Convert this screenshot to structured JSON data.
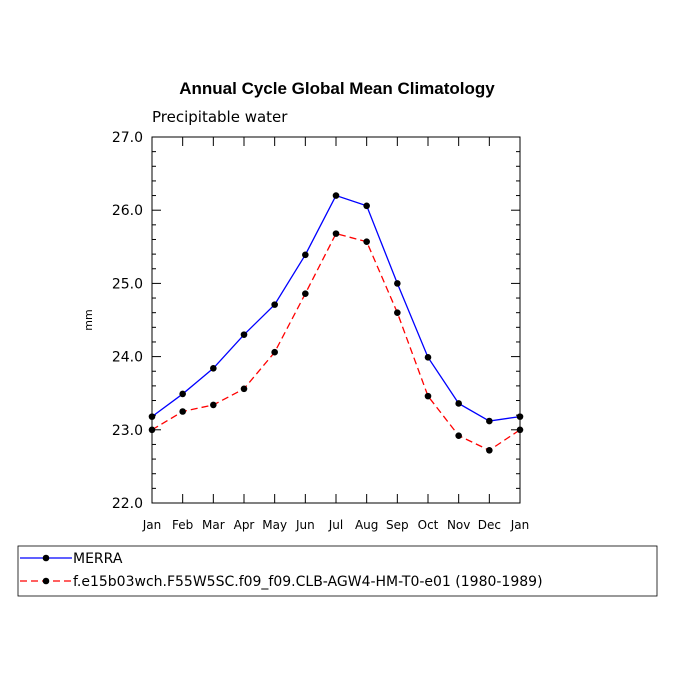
{
  "chart_data": {
    "type": "line",
    "title": "Annual Cycle Global Mean Climatology",
    "subtitle": "Precipitable water",
    "ylabel": "mm",
    "xlabel": "",
    "categories": [
      "Jan",
      "Feb",
      "Mar",
      "Apr",
      "May",
      "Jun",
      "Jul",
      "Aug",
      "Sep",
      "Oct",
      "Nov",
      "Dec",
      "Jan"
    ],
    "ylim": [
      22.0,
      27.0
    ],
    "yticks": [
      "22.0",
      "23.0",
      "24.0",
      "25.0",
      "26.0",
      "27.0"
    ],
    "grid": false,
    "legend_position": "bottom",
    "series": [
      {
        "name": "MERRA",
        "color": "#0000ff",
        "dash": "solid",
        "marker": "dot",
        "values": [
          23.18,
          23.49,
          23.84,
          24.3,
          24.71,
          25.39,
          26.2,
          26.06,
          25.0,
          23.99,
          23.36,
          23.12,
          23.18
        ]
      },
      {
        "name": "f.e15b03wch.F55W5SC.f09_f09.CLB-AGW4-HM-T0-e01 (1980-1989)",
        "color": "#ff0000",
        "dash": "dashed",
        "marker": "dot",
        "values": [
          23.0,
          23.25,
          23.34,
          23.56,
          24.06,
          24.86,
          25.68,
          25.57,
          24.6,
          23.46,
          22.92,
          22.72,
          23.0
        ]
      }
    ]
  }
}
